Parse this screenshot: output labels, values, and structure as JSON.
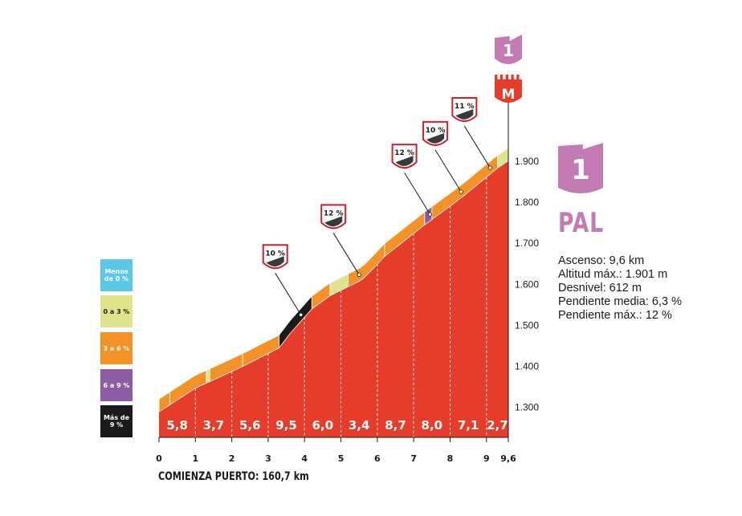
{
  "chart_data": {
    "type": "area",
    "title": "",
    "xlabel": "",
    "ylabel": "",
    "x_ticks": [
      "0",
      "1",
      "2",
      "3",
      "4",
      "5",
      "6",
      "7",
      "8",
      "9",
      "9,6"
    ],
    "y_ticks": [
      "1.300",
      "1.400",
      "1.500",
      "1.600",
      "1.700",
      "1.800",
      "1.900"
    ],
    "xlim": [
      0,
      9.6
    ],
    "ylim": [
      1227,
      1980
    ],
    "profile": [
      {
        "x": 0,
        "y": 1289
      },
      {
        "x": 1,
        "y": 1347
      },
      {
        "x": 1.5,
        "y": 1367
      },
      {
        "x": 2.3,
        "y": 1400
      },
      {
        "x": 3.3,
        "y": 1445
      },
      {
        "x": 3.6,
        "y": 1480
      },
      {
        "x": 4.2,
        "y": 1540
      },
      {
        "x": 4.7,
        "y": 1572
      },
      {
        "x": 5.6,
        "y": 1612
      },
      {
        "x": 6.2,
        "y": 1668
      },
      {
        "x": 7.3,
        "y": 1745
      },
      {
        "x": 8.3,
        "y": 1810
      },
      {
        "x": 9.3,
        "y": 1883
      },
      {
        "x": 9.6,
        "y": 1901
      }
    ],
    "km_gradients": [
      "5,8",
      "3,7",
      "5,6",
      "9,5",
      "6,0",
      "3,4",
      "8,7",
      "8,0",
      "7,1",
      "2,7"
    ],
    "band_segments": [
      {
        "x0": 0,
        "x1": 0.3,
        "category": "3 a 6 %"
      },
      {
        "x0": 0.3,
        "x1": 1.3,
        "category": "3 a 6 %"
      },
      {
        "x0": 1.3,
        "x1": 1.4,
        "category": "0 a 3 %"
      },
      {
        "x0": 1.4,
        "x1": 2.3,
        "category": "3 a 6 %"
      },
      {
        "x0": 2.3,
        "x1": 3.3,
        "category": "3 a 6 %"
      },
      {
        "x0": 3.3,
        "x1": 4.2,
        "category": "Más de 9 %"
      },
      {
        "x0": 4.2,
        "x1": 4.7,
        "category": "3 a 6 %"
      },
      {
        "x0": 4.7,
        "x1": 5.2,
        "category": "0 a 3 %"
      },
      {
        "x0": 5.2,
        "x1": 6.2,
        "category": "3 a 6 %"
      },
      {
        "x0": 6.2,
        "x1": 7.3,
        "category": "3 a 6 %"
      },
      {
        "x0": 7.3,
        "x1": 7.5,
        "category": "6 a 9 %"
      },
      {
        "x0": 7.5,
        "x1": 9.3,
        "category": "3 a 6 %"
      },
      {
        "x0": 9.3,
        "x1": 9.6,
        "category": "0 a 3 %"
      }
    ],
    "max_gradient_markers": [
      {
        "x": 3.9,
        "label": "10 %"
      },
      {
        "x": 5.5,
        "label": "12 %"
      },
      {
        "x": 7.45,
        "label": "12 %"
      },
      {
        "x": 8.3,
        "label": "10 %"
      },
      {
        "x": 9.1,
        "label": "11 %"
      }
    ],
    "legend": [
      {
        "label": "Menos de 0 %",
        "color": "#5bc8e8"
      },
      {
        "label": "0 a 3 %",
        "color": "#dfe48c"
      },
      {
        "label": "3 a 6 %",
        "color": "#f39226"
      },
      {
        "label": "6 a 9 %",
        "color": "#8e5ba5"
      },
      {
        "label": "Más de 9 %",
        "color": "#1a1a1a"
      }
    ],
    "colors": {
      "fill": "#e63c2a",
      "text_on_fill": "#ffffff",
      "category": "#c47ab3",
      "marker_border": "#d21f26"
    }
  },
  "summit": {
    "category": "1",
    "meta_flag": "M",
    "name": "PAL"
  },
  "stats": {
    "ascenso": "Ascenso: 9,6 km",
    "altitud": "Altitud máx.: 1.901 m",
    "desnivel": "Desnivel: 612 m",
    "pendiente_media": "Pendiente media: 6,3 %",
    "pendiente_max": "Pendiente máx.: 12 %"
  },
  "start_label": "COMIENZA PUERTO: 160,7 km"
}
